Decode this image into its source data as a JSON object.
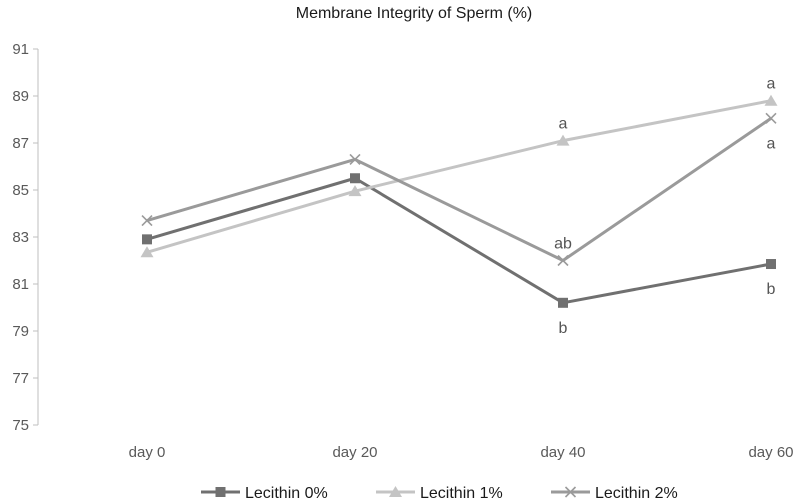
{
  "chart_data": {
    "type": "line",
    "title": "Membrane Integrity of Sperm (%)",
    "xlabel": "",
    "ylabel": "",
    "categories": [
      "day 0",
      "day 20",
      "day 40",
      "day 60"
    ],
    "ylim": [
      75,
      91
    ],
    "yticks": [
      75,
      77,
      79,
      81,
      83,
      85,
      87,
      89,
      91
    ],
    "grid": false,
    "legend_position": "bottom",
    "series": [
      {
        "name": "Lecithin 0%",
        "marker": "square",
        "color": "#707070",
        "values": [
          82.9,
          85.5,
          80.2,
          81.85
        ]
      },
      {
        "name": "Lecithin 1%",
        "marker": "triangle",
        "color": "#c4c4c4",
        "values": [
          82.35,
          84.95,
          87.1,
          88.8
        ]
      },
      {
        "name": "Lecithin 2%",
        "marker": "x",
        "color": "#9a9a9a",
        "values": [
          83.7,
          86.3,
          82.0,
          88.05
        ]
      }
    ],
    "annotations": [
      {
        "category": "day 40",
        "value": 87.1,
        "series": "Lecithin 1%",
        "text": "a",
        "placement": "above"
      },
      {
        "category": "day 40",
        "value": 82.0,
        "series": "Lecithin 2%",
        "text": "ab",
        "placement": "above"
      },
      {
        "category": "day 40",
        "value": 80.2,
        "series": "Lecithin 0%",
        "text": "b",
        "placement": "below"
      },
      {
        "category": "day 60",
        "value": 88.8,
        "series": "Lecithin 1%",
        "text": "a",
        "placement": "above"
      },
      {
        "category": "day 60",
        "value": 88.05,
        "series": "Lecithin 2%",
        "text": "a",
        "placement": "below"
      },
      {
        "category": "day 60",
        "value": 81.85,
        "series": "Lecithin 0%",
        "text": "b",
        "placement": "below"
      }
    ]
  }
}
